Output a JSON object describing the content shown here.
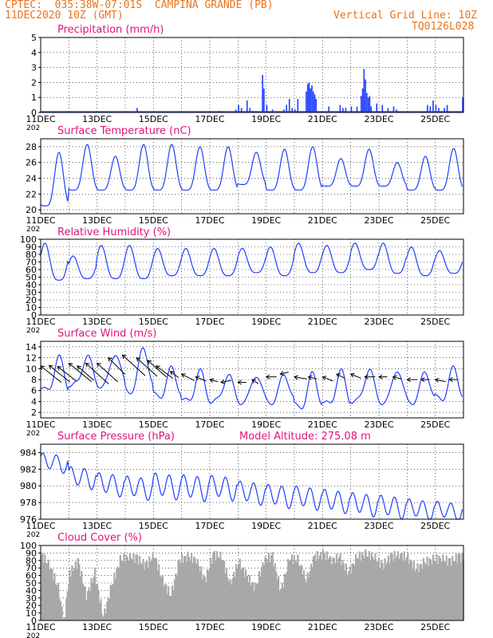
{
  "header": {
    "line1": "CPTEC:  035:38W-07:01S  CAMPINA GRANDE (PB)",
    "line2": "11DEC2020 10Z (GMT)",
    "right1": "Vertical Grid Line: 10Z",
    "right2": "TQ0126L028"
  },
  "colors": {
    "orange": "#e8741c",
    "magenta": "#e0157a",
    "blue": "#1f3fff",
    "gray": "#a8a8a8",
    "black": "#000000"
  },
  "x_ticks": [
    "11DEC",
    "13DEC",
    "15DEC",
    "17DEC",
    "19DEC",
    "21DEC",
    "23DEC",
    "25DEC"
  ],
  "year_stub": "202",
  "chart_data": [
    {
      "id": "precip",
      "type": "bar",
      "title": "Precipitation (mm/h)",
      "ylim": [
        0,
        5
      ],
      "yticks": [
        0,
        1,
        2,
        3,
        4,
        5
      ],
      "x_range_days": [
        0,
        15
      ],
      "bars": [
        [
          1.5,
          0.05
        ],
        [
          3.4,
          0.3
        ],
        [
          5.9,
          0.05
        ],
        [
          6.3,
          0.1
        ],
        [
          6.9,
          0.2
        ],
        [
          7.0,
          0.5
        ],
        [
          7.1,
          0.3
        ],
        [
          7.3,
          0.8
        ],
        [
          7.4,
          0.3
        ],
        [
          7.5,
          0.1
        ],
        [
          7.85,
          2.5
        ],
        [
          7.9,
          1.6
        ],
        [
          8.0,
          0.5
        ],
        [
          8.2,
          0.2
        ],
        [
          8.6,
          0.2
        ],
        [
          8.7,
          0.5
        ],
        [
          8.8,
          0.9
        ],
        [
          8.9,
          0.3
        ],
        [
          9.0,
          0.2
        ],
        [
          9.1,
          0.9
        ],
        [
          9.4,
          1.4
        ],
        [
          9.45,
          1.9
        ],
        [
          9.5,
          2.0
        ],
        [
          9.55,
          1.6
        ],
        [
          9.6,
          1.8
        ],
        [
          9.65,
          1.4
        ],
        [
          9.7,
          1.2
        ],
        [
          9.75,
          0.9
        ],
        [
          10.2,
          0.4
        ],
        [
          10.6,
          0.5
        ],
        [
          10.7,
          0.3
        ],
        [
          10.8,
          0.3
        ],
        [
          11.0,
          0.4
        ],
        [
          11.2,
          0.4
        ],
        [
          11.35,
          1.1
        ],
        [
          11.4,
          1.6
        ],
        [
          11.45,
          2.9
        ],
        [
          11.5,
          2.2
        ],
        [
          11.55,
          1.3
        ],
        [
          11.6,
          1.0
        ],
        [
          11.65,
          1.1
        ],
        [
          11.7,
          0.4
        ],
        [
          11.9,
          0.6
        ],
        [
          12.1,
          0.5
        ],
        [
          12.3,
          0.3
        ],
        [
          12.5,
          0.4
        ],
        [
          12.6,
          0.2
        ],
        [
          13.7,
          0.5
        ],
        [
          13.8,
          0.4
        ],
        [
          13.9,
          0.8
        ],
        [
          14.0,
          0.5
        ],
        [
          14.1,
          0.3
        ],
        [
          14.3,
          0.3
        ],
        [
          14.4,
          0.5
        ],
        [
          14.95,
          1.0
        ]
      ]
    },
    {
      "id": "temp",
      "type": "line",
      "title": "Surface Temperature (nC)",
      "ylim": [
        19.5,
        29
      ],
      "yticks": [
        20,
        22,
        24,
        26,
        28
      ],
      "x_range_days": [
        0,
        15
      ],
      "days": [
        {
          "min": 20.5,
          "max": 27.3
        },
        {
          "min": 22.5,
          "max": 28.3
        },
        {
          "min": 22.5,
          "max": 26.8
        },
        {
          "min": 22.5,
          "max": 28.3
        },
        {
          "min": 22.5,
          "max": 28.3
        },
        {
          "min": 22.5,
          "max": 28.0
        },
        {
          "min": 22.5,
          "max": 28.0
        },
        {
          "min": 23.2,
          "max": 27.3
        },
        {
          "min": 22.5,
          "max": 27.7
        },
        {
          "min": 22.5,
          "max": 28.0
        },
        {
          "min": 23.0,
          "max": 26.5
        },
        {
          "min": 23.0,
          "max": 27.7
        },
        {
          "min": 23.0,
          "max": 26.0
        },
        {
          "min": 22.5,
          "max": 26.8
        },
        {
          "min": 22.5,
          "max": 27.8
        }
      ]
    },
    {
      "id": "rh",
      "type": "line",
      "title": "Relative Humidity (%)",
      "ylim": [
        0,
        100
      ],
      "yticks": [
        0,
        10,
        20,
        30,
        40,
        50,
        60,
        70,
        80,
        90,
        100
      ],
      "x_range_days": [
        0,
        15
      ],
      "days": [
        {
          "min": 46,
          "max": 95
        },
        {
          "min": 48,
          "max": 78
        },
        {
          "min": 48,
          "max": 92
        },
        {
          "min": 48,
          "max": 92
        },
        {
          "min": 52,
          "max": 88
        },
        {
          "min": 52,
          "max": 88
        },
        {
          "min": 52,
          "max": 88
        },
        {
          "min": 56,
          "max": 88
        },
        {
          "min": 52,
          "max": 90
        },
        {
          "min": 56,
          "max": 95
        },
        {
          "min": 56,
          "max": 92
        },
        {
          "min": 60,
          "max": 95
        },
        {
          "min": 55,
          "max": 95
        },
        {
          "min": 52,
          "max": 90
        },
        {
          "min": 55,
          "max": 85
        }
      ]
    },
    {
      "id": "wind",
      "type": "line",
      "title": "Surface Wind (m/s)",
      "ylim": [
        1,
        15
      ],
      "yticks": [
        2,
        4,
        6,
        8,
        10,
        12,
        14
      ],
      "x_range_days": [
        0,
        15
      ],
      "days": [
        {
          "min": 6,
          "max": 12
        },
        {
          "min": 7,
          "max": 12.5
        },
        {
          "min": 7,
          "max": 13
        },
        {
          "min": 6,
          "max": 14
        },
        {
          "min": 5,
          "max": 10
        },
        {
          "min": 4,
          "max": 9.5
        },
        {
          "min": 4,
          "max": 9
        },
        {
          "min": 4,
          "max": 9
        },
        {
          "min": 4,
          "max": 9
        },
        {
          "min": 3,
          "max": 9
        },
        {
          "min": 3.5,
          "max": 9.5
        },
        {
          "min": 4,
          "max": 10
        },
        {
          "min": 4,
          "max": 10
        },
        {
          "min": 4,
          "max": 9.5
        },
        {
          "min": 4.5,
          "max": 10
        }
      ],
      "wind_vectors": [
        [
          0.0,
          10.5,
          10,
          8
        ],
        [
          0.3,
          10.6,
          10,
          8
        ],
        [
          0.6,
          10.4,
          9,
          7
        ],
        [
          1.0,
          11.0,
          11,
          9
        ],
        [
          1.3,
          10.5,
          8,
          7
        ],
        [
          1.6,
          11.0,
          11,
          10
        ],
        [
          2.0,
          11.0,
          10,
          9
        ],
        [
          2.4,
          12.0,
          8,
          8
        ],
        [
          2.9,
          12.5,
          11,
          10
        ],
        [
          3.4,
          12.0,
          10,
          9
        ],
        [
          3.8,
          11.5,
          9,
          8
        ],
        [
          4.1,
          10.5,
          8,
          6
        ],
        [
          4.6,
          9.5,
          4,
          3
        ],
        [
          5.0,
          9.0,
          6,
          3
        ],
        [
          5.5,
          8.5,
          5,
          2
        ],
        [
          6.0,
          8.0,
          4,
          1
        ],
        [
          6.4,
          7.5,
          5,
          -1
        ],
        [
          7.0,
          7.5,
          4,
          0
        ],
        [
          7.5,
          8.0,
          3,
          2
        ],
        [
          8.0,
          8.5,
          5,
          0
        ],
        [
          8.5,
          9.0,
          4,
          -1
        ],
        [
          9.0,
          8.5,
          6,
          1
        ],
        [
          9.5,
          8.5,
          4,
          1
        ],
        [
          10.0,
          8.5,
          5,
          2
        ],
        [
          10.5,
          9.0,
          4,
          2
        ],
        [
          11.0,
          9.0,
          5,
          2
        ],
        [
          11.5,
          8.5,
          5,
          0
        ],
        [
          12.0,
          8.5,
          4,
          0
        ],
        [
          12.5,
          8.5,
          4,
          1
        ],
        [
          13.0,
          8.0,
          5,
          0
        ],
        [
          13.5,
          8.0,
          4,
          0
        ],
        [
          14.0,
          8.0,
          5,
          1
        ],
        [
          14.5,
          8.0,
          4,
          0
        ]
      ]
    },
    {
      "id": "pressure",
      "type": "line",
      "title": "Surface Pressure (hPa)",
      "annotation": "Model Altitude: 275.08 m",
      "ylim": [
        976,
        985
      ],
      "yticks": [
        976,
        978,
        980,
        982,
        984
      ],
      "x_range_days": [
        0,
        15
      ],
      "days": [
        {
          "base": 982.8,
          "amp": 1.3
        },
        {
          "base": 981.0,
          "amp": 1.5
        },
        {
          "base": 980.2,
          "amp": 1.6
        },
        {
          "base": 979.8,
          "amp": 1.6
        },
        {
          "base": 980.0,
          "amp": 1.8
        },
        {
          "base": 979.8,
          "amp": 1.8
        },
        {
          "base": 979.8,
          "amp": 1.7
        },
        {
          "base": 979.2,
          "amp": 1.6
        },
        {
          "base": 978.8,
          "amp": 1.6
        },
        {
          "base": 978.6,
          "amp": 1.6
        },
        {
          "base": 978.2,
          "amp": 1.6
        },
        {
          "base": 977.8,
          "amp": 1.6
        },
        {
          "base": 977.5,
          "amp": 1.6
        },
        {
          "base": 977.2,
          "amp": 1.4
        },
        {
          "base": 977.0,
          "amp": 1.3
        }
      ]
    },
    {
      "id": "cloud",
      "type": "bar",
      "title": "Cloud Cover (%)",
      "ylim": [
        0,
        100
      ],
      "yticks": [
        0,
        10,
        20,
        30,
        40,
        50,
        60,
        70,
        80,
        90,
        100
      ],
      "x_range_days": [
        0,
        15
      ],
      "profile": [
        [
          0.0,
          95
        ],
        [
          0.3,
          80
        ],
        [
          0.6,
          50
        ],
        [
          0.8,
          5
        ],
        [
          1.0,
          70
        ],
        [
          1.3,
          85
        ],
        [
          1.6,
          40
        ],
        [
          1.9,
          70
        ],
        [
          2.2,
          10
        ],
        [
          2.5,
          55
        ],
        [
          2.8,
          88
        ],
        [
          3.1,
          92
        ],
        [
          3.4,
          90
        ],
        [
          3.7,
          80
        ],
        [
          4.0,
          95
        ],
        [
          4.3,
          60
        ],
        [
          4.6,
          40
        ],
        [
          4.9,
          88
        ],
        [
          5.2,
          92
        ],
        [
          5.5,
          88
        ],
        [
          5.8,
          60
        ],
        [
          6.1,
          95
        ],
        [
          6.4,
          92
        ],
        [
          6.7,
          55
        ],
        [
          7.0,
          85
        ],
        [
          7.3,
          65
        ],
        [
          7.6,
          50
        ],
        [
          7.9,
          88
        ],
        [
          8.2,
          92
        ],
        [
          8.5,
          45
        ],
        [
          8.8,
          90
        ],
        [
          9.1,
          88
        ],
        [
          9.4,
          60
        ],
        [
          9.7,
          92
        ],
        [
          10.0,
          95
        ],
        [
          10.3,
          88
        ],
        [
          10.6,
          90
        ],
        [
          10.9,
          70
        ],
        [
          11.2,
          92
        ],
        [
          11.5,
          95
        ],
        [
          11.8,
          92
        ],
        [
          12.1,
          80
        ],
        [
          12.4,
          92
        ],
        [
          12.7,
          95
        ],
        [
          13.0,
          90
        ],
        [
          13.3,
          75
        ],
        [
          13.6,
          85
        ],
        [
          13.9,
          88
        ],
        [
          14.2,
          90
        ],
        [
          14.5,
          85
        ],
        [
          14.8,
          92
        ],
        [
          15.0,
          90
        ]
      ]
    }
  ]
}
